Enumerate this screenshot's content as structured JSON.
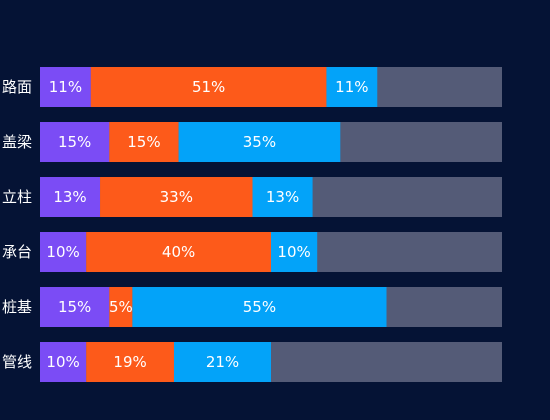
{
  "chart_data": {
    "type": "bar",
    "orientation": "horizontal",
    "stacked": true,
    "categories": [
      "路面",
      "盖梁",
      "立柱",
      "承台",
      "桩基",
      "管线"
    ],
    "series": [
      {
        "values": [
          11,
          15,
          13,
          10,
          15,
          10
        ],
        "color": "#7b4cf5"
      },
      {
        "values": [
          51,
          15,
          33,
          40,
          5,
          19
        ],
        "color": "#fd5a1a"
      },
      {
        "values": [
          11,
          35,
          13,
          10,
          55,
          21
        ],
        "color": "#03a3f9"
      }
    ],
    "remainder_color": "#545b77",
    "xlim": [
      0,
      100
    ],
    "grid": false,
    "legend": "none",
    "value_suffix": "%"
  }
}
